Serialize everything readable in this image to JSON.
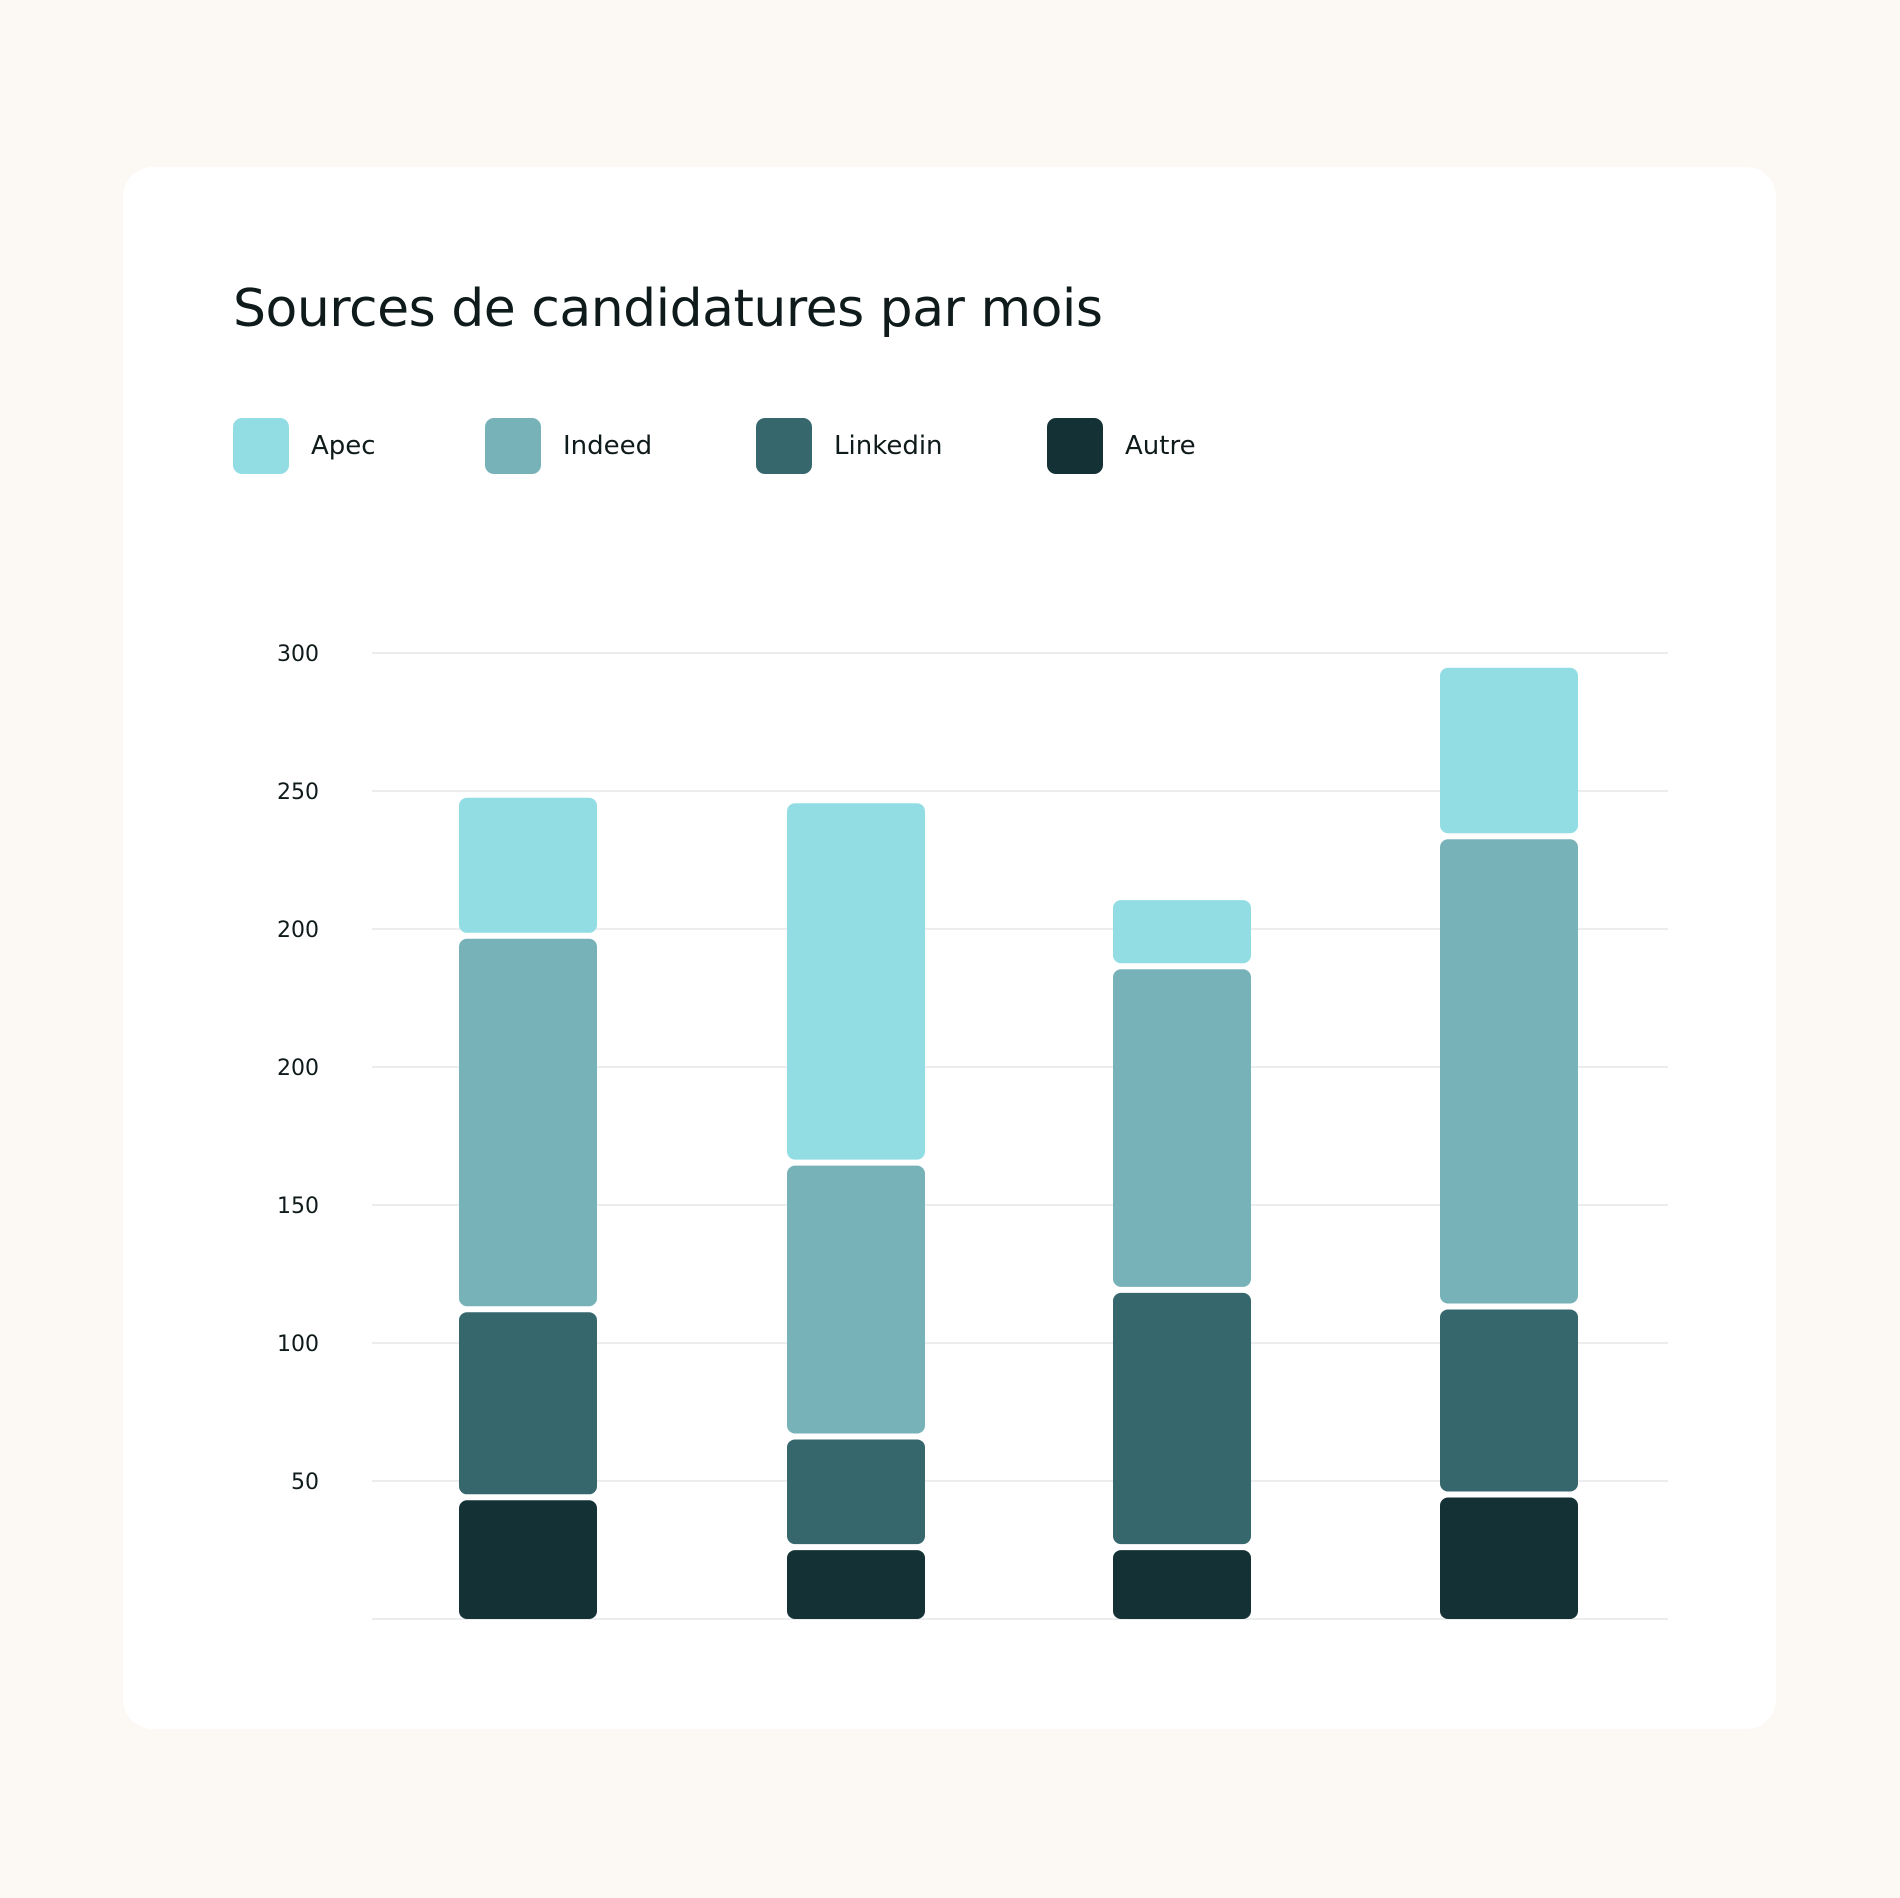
{
  "colors": {
    "page_background": "#fcf8f4",
    "card_background": "#ffffff",
    "gridline": "#ebedee"
  },
  "chart_data": {
    "type": "bar",
    "stacked": true,
    "title": "Sources de candidatures par mois",
    "xlabel": "",
    "ylabel": "",
    "categories": [
      "",
      "",
      "",
      ""
    ],
    "ytick_labels": [
      "50",
      "100",
      "150",
      "200",
      "200",
      "250",
      "300"
    ],
    "ylim": [
      0,
      350
    ],
    "grid": true,
    "legend_position": "top-left",
    "series": [
      {
        "name": "Autre",
        "color": "#143235",
        "values": [
          44,
          26,
          26,
          45
        ]
      },
      {
        "name": "Linkedin",
        "color": "#35676d",
        "values": [
          68,
          40,
          93,
          68
        ]
      },
      {
        "name": "Indeed",
        "color": "#78b2b9",
        "values": [
          135,
          99,
          117,
          170
        ]
      },
      {
        "name": "Apec",
        "color": "#92dde4",
        "values": [
          51,
          131,
          25,
          62
        ]
      }
    ],
    "legend_order": [
      "Apec",
      "Indeed",
      "Linkedin",
      "Autre"
    ]
  }
}
